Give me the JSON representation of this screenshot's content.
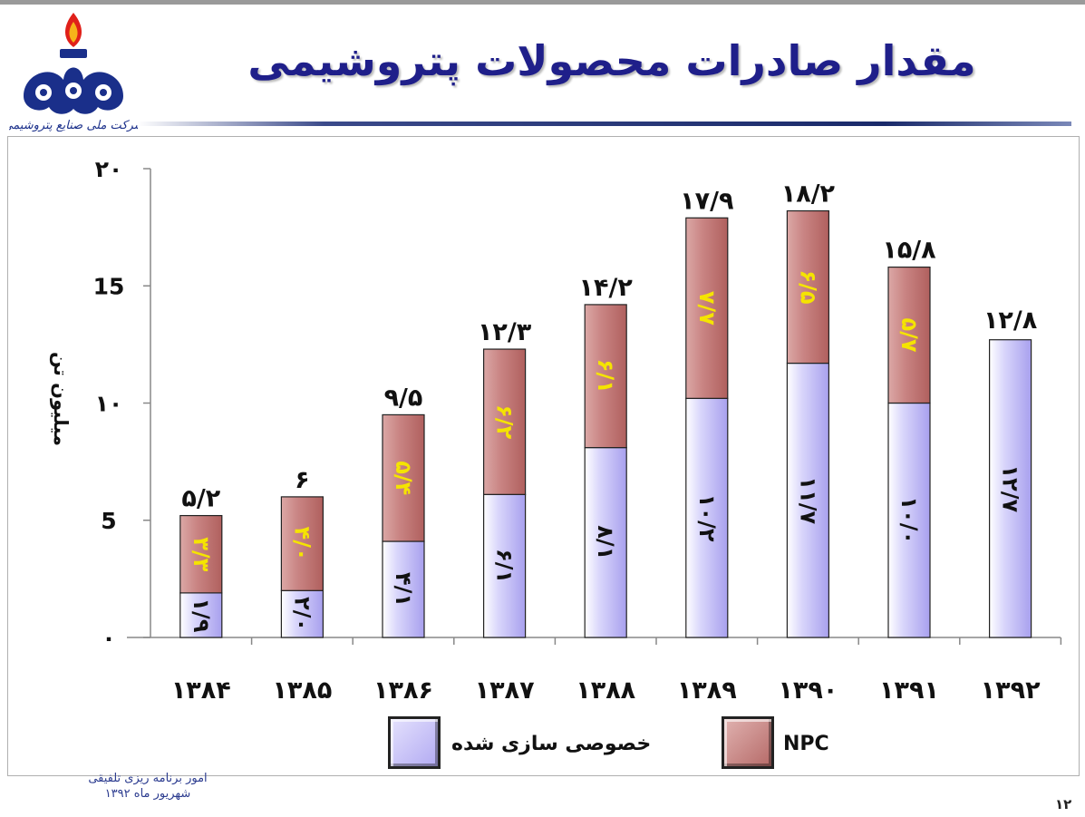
{
  "slide": {
    "title": "مقدار صادرات محصولات پتروشیمی",
    "logo_caption": "شرکت ملی صنایع پتروشیمی",
    "footer_line1": "امور برنامه ریزی تلفیقی",
    "footer_line2": "شهریور ماه ۱۳۹۲",
    "page_number": "۱۲"
  },
  "colors": {
    "private_fill": "#c9c4f7",
    "npc_fill": "#c98483",
    "npc_label": "#f5e400",
    "title": "#1f1f8a"
  },
  "chart_data": {
    "type": "bar",
    "stacked": true,
    "ylabel": "میلیون تن",
    "ylim": [
      0,
      20
    ],
    "yticks": [
      "۰",
      "5",
      "۱۰",
      "15",
      "۲۰"
    ],
    "ytick_values": [
      0,
      5,
      10,
      15,
      20
    ],
    "categories": [
      "۱۳۸۴",
      "۱۳۸۵",
      "۱۳۸۶",
      "۱۳۸۷",
      "۱۳۸۸",
      "۱۳۸۹",
      "۱۳۹۰",
      "۱۳۹۱",
      "۱۳۹۲"
    ],
    "totals": [
      5.2,
      6,
      9.5,
      12.3,
      14.2,
      17.9,
      18.2,
      15.8,
      12.8
    ],
    "total_labels": [
      "۵/۲",
      "۶",
      "۹/۵",
      "۱۲/۳",
      "۱۴/۲",
      "۱۷/۹",
      "۱۸/۲",
      "۱۵/۸",
      "۱۲/۸"
    ],
    "series": [
      {
        "name": "خصوصی سازی شده",
        "values": [
          1.9,
          2.0,
          4.1,
          6.1,
          8.1,
          10.2,
          11.7,
          10.0,
          12.7
        ],
        "labels": [
          "۱/۹",
          "۲/۰",
          "۴/۱",
          "۶/۱",
          "۸/۱",
          "۱۰/۲",
          "۱۱/۷",
          "۱۰/۰",
          "۱۲/۷"
        ]
      },
      {
        "name": "NPC",
        "values": [
          3.3,
          4.0,
          5.4,
          6.2,
          6.1,
          7.7,
          6.5,
          5.7,
          0
        ],
        "labels": [
          "۳/۳",
          "۴/۰",
          "۵/۴",
          "۶/۲",
          "۶/۱",
          "۷/۷",
          "۶/۵",
          "۵/۷",
          ""
        ]
      }
    ],
    "legend": [
      "NPC",
      "خصوصی سازی شده"
    ],
    "legend_position": "bottom",
    "grid": false
  }
}
